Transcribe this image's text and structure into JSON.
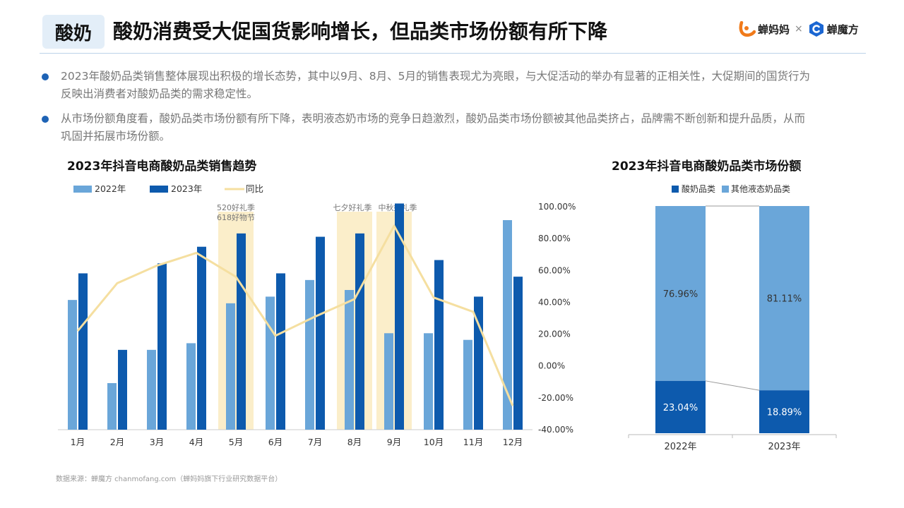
{
  "header": {
    "tag": "酸奶",
    "title": "酸奶消费受大促国货影响增长，但品类市场份额有所下降"
  },
  "logos": {
    "brand1": "蝉妈妈",
    "separator": "×",
    "brand2": "蝉魔方"
  },
  "bullets": [
    "2023年酸奶品类销售整体展现出积极的增长态势，其中以9月、8月、5月的销售表现尤为亮眼，与大促活动的举办有显著的正相关性，大促期间的国货行为反映出消费者对酸奶品类的需求稳定性。",
    "从市场份额角度看，酸奶品类市场份额有所下降，表明液态奶市场的竞争日趋激烈，酸奶品类市场份额被其他品类挤占，品牌需不断创新和提升品质，从而巩固并拓展市场份额。"
  ],
  "colors": {
    "c2022": "#6aa6d9",
    "c2023": "#0d5aad",
    "yoy": "#f5dfa0",
    "highlight": "#fbeeca",
    "share_yogurt": "#0d5aad",
    "share_other": "#6aa6d9"
  },
  "chart_data": [
    {
      "type": "bar",
      "title": "2023年抖音电商酸奶品类销售趋势",
      "categories": [
        "1月",
        "2月",
        "3月",
        "4月",
        "5月",
        "6月",
        "7月",
        "8月",
        "9月",
        "10月",
        "11月",
        "12月"
      ],
      "series": [
        {
          "name": "2022年",
          "type": "bar",
          "values": [
            39,
            14,
            24,
            26,
            38,
            40,
            45,
            42,
            29,
            29,
            27,
            63
          ]
        },
        {
          "name": "2023年",
          "type": "bar",
          "values": [
            47,
            24,
            50,
            55,
            59,
            47,
            58,
            59,
            68,
            51,
            40,
            46
          ]
        },
        {
          "name": "同比",
          "type": "line",
          "axis": "right",
          "values": [
            22,
            52,
            63,
            71,
            56,
            19,
            31,
            42,
            88,
            43,
            34,
            -25
          ]
        }
      ],
      "y_left_range": [
        0,
        70
      ],
      "y_right_range": [
        -40,
        100
      ],
      "y_right_ticks": [
        "100.00%",
        "80.00%",
        "60.00%",
        "40.00%",
        "20.00%",
        "0.00%",
        "-20.00%",
        "-40.00%"
      ],
      "legend_position": "top-left",
      "highlights": [
        {
          "category": "5月",
          "label": "520好礼季\n618好物节"
        },
        {
          "category": "8月",
          "label": "七夕好礼季"
        },
        {
          "category": "9月",
          "label": "中秋好礼季"
        }
      ]
    },
    {
      "type": "bar",
      "stacked": true,
      "percent": true,
      "title": "2023年抖音电商酸奶品类市场份额",
      "categories": [
        "2022年",
        "2023年"
      ],
      "series": [
        {
          "name": "酸奶品类",
          "values": [
            23.04,
            18.89
          ],
          "labels": [
            "23.04%",
            "18.89%"
          ]
        },
        {
          "name": "其他液态奶品类",
          "values": [
            76.96,
            81.11
          ],
          "labels": [
            "76.96%",
            "81.11%"
          ]
        }
      ],
      "legend_position": "top"
    }
  ],
  "source": "数据来源：蝉魔方 chanmofang.com（蝉妈妈旗下行业研究数据平台）"
}
